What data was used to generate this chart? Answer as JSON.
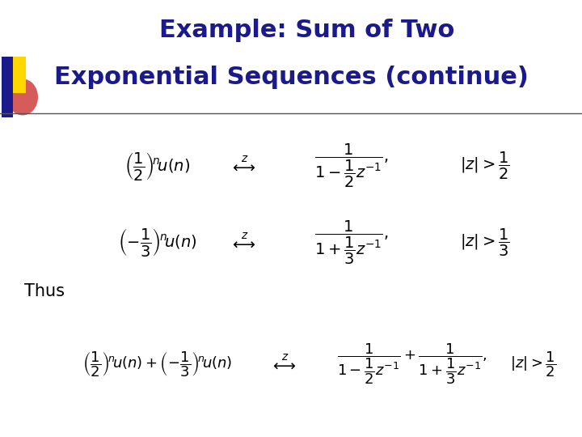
{
  "title_line1": "Example: Sum of Two",
  "title_line2": "Exponential Sequences (continue)",
  "title_color": "#1a1a8c",
  "title_fontsize": 22,
  "background_color": "#ffffff",
  "math_color": "#000000",
  "thus_fontsize": 15,
  "eq_fontsize": 14,
  "separator_color": "#555555",
  "gold_color": "#FFD700",
  "blue_color": "#1a1a8c",
  "red_color": "#cc3333"
}
